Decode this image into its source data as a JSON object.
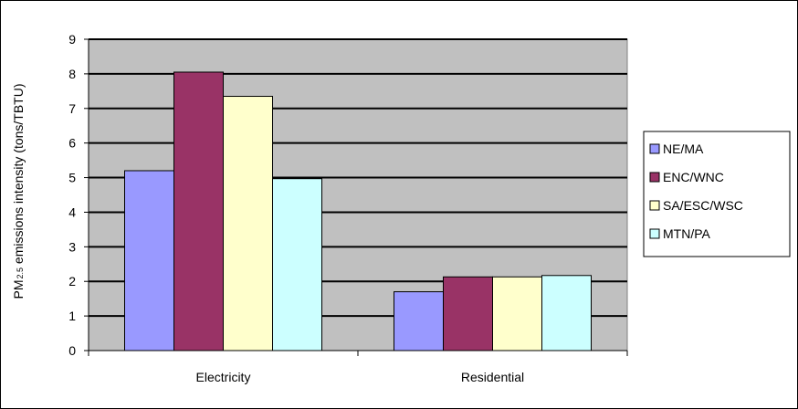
{
  "chart_data": {
    "type": "bar",
    "title": "",
    "xlabel": "",
    "ylabel": "PM2.5 emissions intensity (tons/TBTU)",
    "ylabel_parts": {
      "pre": "PM",
      "sub": "2.5",
      "post": " emissions intensity (tons/TBTU)"
    },
    "categories": [
      "Electricity",
      "Residential"
    ],
    "ylim": [
      0,
      9
    ],
    "yticks": [
      0,
      1,
      2,
      3,
      4,
      5,
      6,
      7,
      8,
      9
    ],
    "grid": true,
    "legend_position": "right",
    "series": [
      {
        "name": "NE/MA",
        "color": "#9999ff",
        "values": [
          5.2,
          1.7
        ]
      },
      {
        "name": "ENC/WNC",
        "color": "#993366",
        "values": [
          8.05,
          2.13
        ]
      },
      {
        "name": "SA/ESC/WSC",
        "color": "#ffffcc",
        "values": [
          7.35,
          2.13
        ]
      },
      {
        "name": "MTN/PA",
        "color": "#ccffff",
        "values": [
          4.97,
          2.17
        ]
      }
    ],
    "plot_background": "#c0c0c0"
  }
}
